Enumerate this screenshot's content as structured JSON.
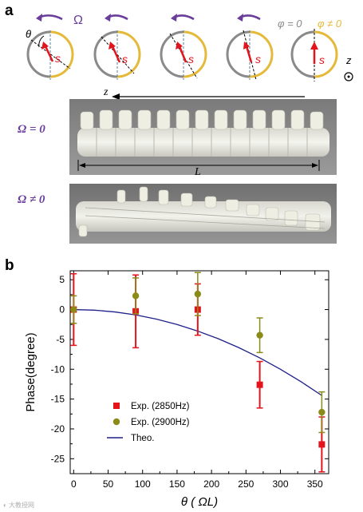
{
  "panel_a": {
    "label": "a",
    "omega_symbol": "Ω",
    "theta_symbol": "θ",
    "s_label": "s",
    "phi_zero": "φ = 0",
    "phi_nonzero": "φ ≠ 0",
    "z_symbol": "z",
    "z_axis_label": "z",
    "photo_top_label": "Ω = 0",
    "photo_bottom_label": "Ω ≠ 0",
    "length_label": "L",
    "colors": {
      "gray_ring": "#8a8a8a",
      "gold_ring": "#e5b93a",
      "arrow_red": "#e4141c",
      "purple": "#6a3d9a"
    }
  },
  "panel_b": {
    "label": "b",
    "ylabel": "Phase(degree)",
    "xlabel": "θ ( ΩL)",
    "legend": [
      {
        "label": "Exp.  (2850Hz)",
        "marker": "square",
        "color": "#e4141c"
      },
      {
        "label": "Exp.  (2900Hz)",
        "marker": "circle",
        "color": "#8b8b1a"
      },
      {
        "label": "Theo.",
        "marker": "line",
        "color": "#1f1f8a"
      }
    ]
  },
  "chart_data": {
    "type": "scatter",
    "title": "",
    "xlabel": "θ ( ΩL)",
    "ylabel": "Phase(degree)",
    "xlim": [
      -5,
      370
    ],
    "ylim": [
      -27.5,
      6.5
    ],
    "xticks": [
      0,
      50,
      100,
      150,
      200,
      250,
      300,
      350
    ],
    "yticks": [
      5,
      0,
      -5,
      -10,
      -15,
      -20,
      -25
    ],
    "legend_position": "bottom-left",
    "series": [
      {
        "name": "Exp.  (2850Hz)",
        "marker": "square",
        "color": "#e4141c",
        "x": [
          0,
          90,
          180,
          270,
          360
        ],
        "y": [
          0,
          -0.3,
          0,
          -12.6,
          -22.6
        ],
        "err": [
          6.0,
          6.1,
          4.3,
          3.9,
          4.6
        ]
      },
      {
        "name": "Exp.  (2900Hz)",
        "marker": "circle",
        "color": "#8b8b1a",
        "x": [
          0,
          90,
          180,
          270,
          360
        ],
        "y": [
          0,
          2.3,
          2.6,
          -4.3,
          -17.2
        ],
        "err": [
          2.3,
          3.0,
          3.6,
          2.9,
          3.4
        ]
      },
      {
        "name": "Theo.",
        "marker": "line",
        "color": "#1f1f8a",
        "x": [
          0,
          30,
          60,
          90,
          120,
          150,
          180,
          210,
          240,
          270,
          300,
          330,
          360
        ],
        "y": [
          0,
          -0.1,
          -0.4,
          -0.9,
          -1.6,
          -2.5,
          -3.6,
          -4.9,
          -6.4,
          -8.1,
          -10.0,
          -12.1,
          -14.4
        ]
      }
    ]
  }
}
